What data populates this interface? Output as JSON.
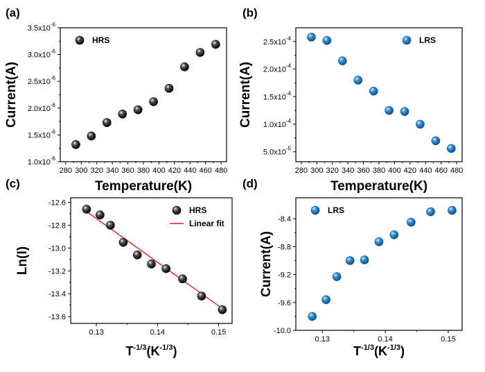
{
  "colors": {
    "hrs": "#111111",
    "lrs": "#1a78c0",
    "fit": "#e02020"
  },
  "chart_data": [
    {
      "id": "a",
      "type": "scatter",
      "label": "(a)",
      "xlabel": "Temperature(K)",
      "ylabel": "Current(A)",
      "xlim": [
        273,
        487
      ],
      "ylim": [
        1e-06,
        3.5e-06
      ],
      "xticks": [
        280,
        300,
        320,
        340,
        360,
        380,
        400,
        420,
        440,
        460,
        480
      ],
      "xtick_labels": [
        "280",
        "300",
        "320",
        "340",
        "360",
        "380",
        "400",
        "420",
        "440",
        "460",
        "480"
      ],
      "yticks": [
        1e-06,
        1.5e-06,
        2e-06,
        2.5e-06,
        3e-06,
        3.5e-06
      ],
      "ytick_mantissa": [
        "1.0x10",
        "1.5x10",
        "2.0x10",
        "2.5x10",
        "3.0x10",
        "3.5x10"
      ],
      "ytick_exponent": [
        "-6",
        "-6",
        "-6",
        "-6",
        "-6",
        "-6"
      ],
      "legend_position": "top-left",
      "series": [
        {
          "name": "HRS",
          "color_key": "hrs",
          "x": [
            293,
            313,
            333,
            353,
            373,
            393,
            413,
            433,
            453,
            473
          ],
          "y": [
            1.32e-06,
            1.48e-06,
            1.73e-06,
            1.89e-06,
            1.97e-06,
            2.12e-06,
            2.37e-06,
            2.77e-06,
            3.04e-06,
            3.19e-06
          ]
        }
      ]
    },
    {
      "id": "b",
      "type": "scatter",
      "label": "(b)",
      "xlabel": "Temperature(K)",
      "ylabel": "Current(A)",
      "xlim": [
        273,
        487
      ],
      "ylim": [
        3.2e-05,
        0.000275
      ],
      "xticks": [
        280,
        300,
        320,
        340,
        360,
        380,
        400,
        420,
        440,
        460,
        480
      ],
      "xtick_labels": [
        "280",
        "300",
        "320",
        "340",
        "360",
        "380",
        "400",
        "420",
        "440",
        "460",
        "480"
      ],
      "yticks": [
        5e-05,
        0.0001,
        0.00015,
        0.0002,
        0.00025
      ],
      "ytick_mantissa": [
        "5.0x10",
        "1.0x10",
        "1.5x10",
        "2.0x10",
        "2.5x10"
      ],
      "ytick_exponent": [
        "-5",
        "-4",
        "-4",
        "-4",
        "-4"
      ],
      "legend_position": "top-right",
      "series": [
        {
          "name": "LRS",
          "color_key": "lrs",
          "x": [
            293,
            313,
            333,
            353,
            373,
            393,
            413,
            433,
            453,
            473
          ],
          "y": [
            0.000258,
            0.000252,
            0.000215,
            0.00018,
            0.00016,
            0.000125,
            0.000123,
            0.0001,
            7e-05,
            5.6e-05
          ]
        }
      ]
    },
    {
      "id": "c",
      "type": "scatter",
      "label": "(c)",
      "xlabel_base": "T",
      "xlabel_sup": "-1/3",
      "xlabel_mid": "(K",
      "xlabel_sup2": "-1/3",
      "xlabel_end": ")",
      "ylabel": "Ln(I)",
      "xlim": [
        0.1258,
        0.1522
      ],
      "ylim": [
        -13.66,
        -12.56
      ],
      "xticks": [
        0.13,
        0.14,
        0.15
      ],
      "xtick_labels": [
        "0.13",
        "0.14",
        "0.15"
      ],
      "yticks": [
        -12.6,
        -12.8,
        -13.0,
        -13.2,
        -13.4,
        -13.6
      ],
      "ytick_labels": [
        "-12.6",
        "-12.8",
        "-13.0",
        "-13.2",
        "-13.4",
        "-13.6"
      ],
      "legend_position": "top-right",
      "series": [
        {
          "name": "HRS",
          "color_key": "hrs",
          "x": [
            0.1284,
            0.1306,
            0.1323,
            0.1344,
            0.1367,
            0.139,
            0.1414,
            0.1441,
            0.1472,
            0.1506
          ],
          "y": [
            -12.66,
            -12.71,
            -12.8,
            -12.95,
            -13.06,
            -13.14,
            -13.18,
            -13.27,
            -13.42,
            -13.54
          ]
        }
      ],
      "fit": {
        "name": "Linear fit",
        "color_key": "fit",
        "x": [
          0.1284,
          0.1506
        ],
        "y": [
          -12.68,
          -13.53
        ]
      }
    },
    {
      "id": "d",
      "type": "scatter",
      "label": "(d)",
      "xlabel_base": "T",
      "xlabel_sup": "-1/3",
      "xlabel_mid": "(K",
      "xlabel_sup2": "-1/3",
      "xlabel_end": ")",
      "ylabel": "Current(A)",
      "xlim": [
        0.1258,
        0.1522
      ],
      "ylim": [
        -10.0,
        -8.1
      ],
      "xticks": [
        0.13,
        0.14,
        0.15
      ],
      "xtick_labels": [
        "0.13",
        "0.14",
        "0.15"
      ],
      "yticks": [
        -8.4,
        -8.8,
        -9.2,
        -9.6,
        -10.0
      ],
      "ytick_labels": [
        "-8.4",
        "-8.8",
        "-9.2",
        "-9.6",
        "-10.0"
      ],
      "legend_position": "top-left",
      "series": [
        {
          "name": "LRS",
          "color_key": "lrs",
          "x": [
            0.1284,
            0.1306,
            0.1323,
            0.1344,
            0.1367,
            0.139,
            0.1414,
            0.1441,
            0.1472,
            0.1506
          ],
          "y": [
            -9.8,
            -9.56,
            -9.23,
            -9.0,
            -8.99,
            -8.73,
            -8.63,
            -8.45,
            -8.3,
            -8.28
          ]
        }
      ]
    }
  ]
}
